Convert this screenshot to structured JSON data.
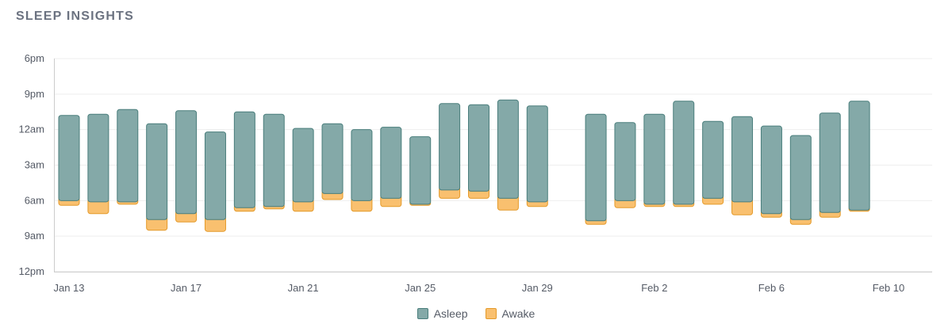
{
  "title": "SLEEP INSIGHTS",
  "colors": {
    "asleep_fill": "#84a9a8",
    "asleep_stroke": "#4a7e7c",
    "awake_fill": "#f9c06f",
    "awake_stroke": "#e49a2a",
    "grid": "#eeeeee",
    "axis": "#cccccc"
  },
  "chart_data": {
    "type": "bar",
    "stacked": true,
    "y_axis": {
      "ticks": [
        "6pm",
        "9pm",
        "12am",
        "3am",
        "6am",
        "9am",
        "12pm"
      ],
      "range_hours_from_6pm": [
        0,
        18
      ],
      "inverted": true
    },
    "x_axis": {
      "ticks": [
        "Jan 13",
        "Jan 17",
        "Jan 21",
        "Jan 25",
        "Jan 29",
        "Feb 2",
        "Feb 6",
        "Feb 10"
      ]
    },
    "legend": {
      "position": "bottom",
      "entries": [
        "Asleep",
        "Awake"
      ]
    },
    "grid": true,
    "series": [
      {
        "date": "Jan 13",
        "sleep_start": "22:48",
        "asleep_end": "06:00",
        "wake_end": "06:24"
      },
      {
        "date": "Jan 14",
        "sleep_start": "22:42",
        "asleep_end": "06:06",
        "wake_end": "07:06"
      },
      {
        "date": "Jan 15",
        "sleep_start": "22:18",
        "asleep_end": "06:06",
        "wake_end": "06:18"
      },
      {
        "date": "Jan 16",
        "sleep_start": "23:30",
        "asleep_end": "07:36",
        "wake_end": "08:30"
      },
      {
        "date": "Jan 17",
        "sleep_start": "22:24",
        "asleep_end": "07:06",
        "wake_end": "07:48"
      },
      {
        "date": "Jan 18",
        "sleep_start": "00:12",
        "asleep_end": "07:36",
        "wake_end": "08:36"
      },
      {
        "date": "Jan 19",
        "sleep_start": "22:30",
        "asleep_end": "06:36",
        "wake_end": "06:54"
      },
      {
        "date": "Jan 20",
        "sleep_start": "22:42",
        "asleep_end": "06:30",
        "wake_end": "06:42"
      },
      {
        "date": "Jan 21",
        "sleep_start": "23:54",
        "asleep_end": "06:06",
        "wake_end": "06:54"
      },
      {
        "date": "Jan 22",
        "sleep_start": "23:30",
        "asleep_end": "05:24",
        "wake_end": "05:54"
      },
      {
        "date": "Jan 23",
        "sleep_start": "00:00",
        "asleep_end": "06:00",
        "wake_end": "06:54"
      },
      {
        "date": "Jan 24",
        "sleep_start": "23:48",
        "asleep_end": "05:48",
        "wake_end": "06:30"
      },
      {
        "date": "Jan 25",
        "sleep_start": "00:36",
        "asleep_end": "06:18",
        "wake_end": "06:24"
      },
      {
        "date": "Jan 26",
        "sleep_start": "21:48",
        "asleep_end": "05:06",
        "wake_end": "05:48"
      },
      {
        "date": "Jan 27",
        "sleep_start": "21:54",
        "asleep_end": "05:12",
        "wake_end": "05:48"
      },
      {
        "date": "Jan 28",
        "sleep_start": "21:30",
        "asleep_end": "05:48",
        "wake_end": "06:48"
      },
      {
        "date": "Jan 29",
        "sleep_start": "22:00",
        "asleep_end": "06:06",
        "wake_end": "06:30"
      },
      {
        "date": "Jan 31",
        "sleep_start": "22:42",
        "asleep_end": "07:42",
        "wake_end": "08:00"
      },
      {
        "date": "Feb 1",
        "sleep_start": "23:24",
        "asleep_end": "06:00",
        "wake_end": "06:36"
      },
      {
        "date": "Feb 2",
        "sleep_start": "22:42",
        "asleep_end": "06:18",
        "wake_end": "06:30"
      },
      {
        "date": "Feb 3",
        "sleep_start": "21:36",
        "asleep_end": "06:18",
        "wake_end": "06:30"
      },
      {
        "date": "Feb 4",
        "sleep_start": "23:18",
        "asleep_end": "05:48",
        "wake_end": "06:18"
      },
      {
        "date": "Feb 5",
        "sleep_start": "22:54",
        "asleep_end": "06:06",
        "wake_end": "07:12"
      },
      {
        "date": "Feb 6",
        "sleep_start": "23:42",
        "asleep_end": "07:06",
        "wake_end": "07:24"
      },
      {
        "date": "Feb 7",
        "sleep_start": "00:30",
        "asleep_end": "07:36",
        "wake_end": "08:00"
      },
      {
        "date": "Feb 8",
        "sleep_start": "22:36",
        "asleep_end": "07:00",
        "wake_end": "07:24"
      },
      {
        "date": "Feb 9",
        "sleep_start": "21:36",
        "asleep_end": "06:48",
        "wake_end": "06:54"
      }
    ]
  }
}
